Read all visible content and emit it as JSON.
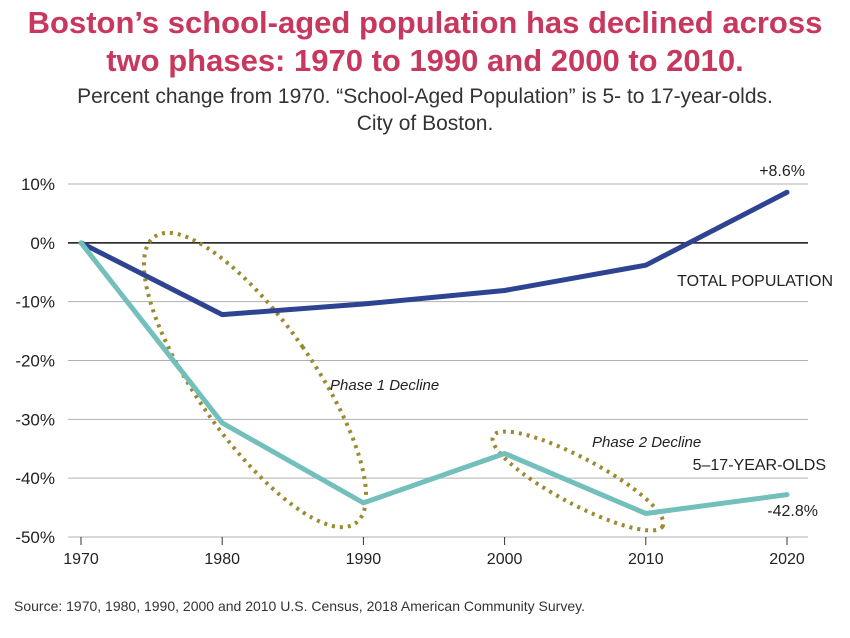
{
  "title_line1": "Boston’s school-aged population has declined across",
  "title_line2": "two phases: 1970 to 1990 and 2000 to 2010.",
  "subtitle_line1": "Percent change from 1970. “School-Aged Population” is 5- to 17-year-olds.",
  "subtitle_line2": "City of Boston.",
  "source": "Source: 1970, 1980, 1990, 2000 and 2010 U.S. Census, 2018 American Community Survey.",
  "colors": {
    "title": "#c8385e",
    "total": "#2e4492",
    "school": "#72bfbb",
    "ellipse": "#9c8a2e",
    "grid": "#b0b0b0",
    "zero": "#111111"
  },
  "chart_data": {
    "type": "line",
    "x": [
      1970,
      1980,
      1990,
      2000,
      2010,
      2020
    ],
    "xticks": [
      "1970",
      "1980",
      "1990",
      "2000",
      "2010",
      "2020"
    ],
    "yticks": [
      10,
      0,
      -10,
      -20,
      -30,
      -40,
      -50
    ],
    "ytick_labels": [
      "10%",
      "0%",
      "-10%",
      "-20%",
      "-30%",
      "-40%",
      "-50%"
    ],
    "ylim": [
      -50,
      10
    ],
    "series": [
      {
        "name": "TOTAL POPULATION",
        "key": "total",
        "values": [
          0,
          -12.2,
          -10.4,
          -8.1,
          -3.8,
          8.6
        ],
        "end_label": "+8.6%"
      },
      {
        "name": "5–17-YEAR-OLDS",
        "key": "school",
        "values": [
          0,
          -30.6,
          -44.2,
          -35.8,
          -46.0,
          -42.8
        ],
        "end_label": "-42.8%"
      }
    ],
    "annotations": [
      "Phase 1 Decline",
      "Phase 2 Decline"
    ]
  }
}
